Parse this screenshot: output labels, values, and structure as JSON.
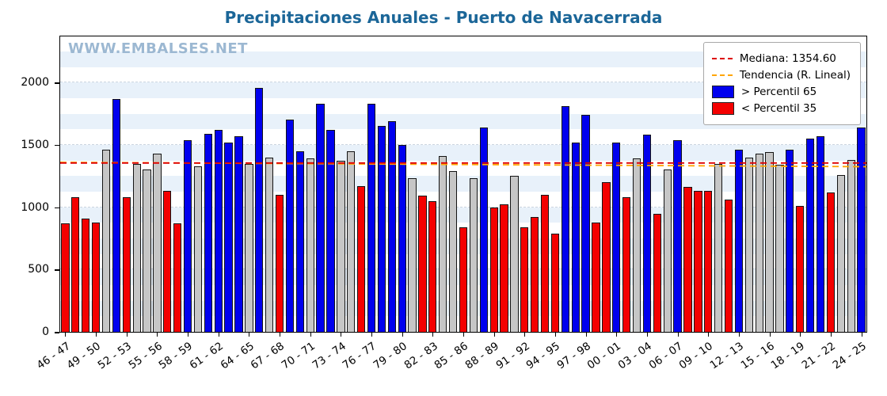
{
  "title": "Precipitaciones Anuales - Puerto de Navacerrada",
  "watermark": "WWW.EMBALSES.NET",
  "legend": {
    "median_label": "Mediana: 1354.60",
    "trend_label": "Tendencia (R. Lineal)",
    "above_label": "> Percentil 65",
    "below_label": "< Percentil 35"
  },
  "colors": {
    "above": "#0000ee",
    "below": "#f40000",
    "mid": "#c6c6c6",
    "median_line": "#dd0000",
    "trend_line": "#ffa500",
    "stripe": "#e8f1fa",
    "title": "#1b6698",
    "watermark": "#9cb8d2"
  },
  "chart_data": {
    "type": "bar",
    "title": "Precipitaciones Anuales - Puerto de Navacerrada",
    "xlabel": "",
    "ylabel": "",
    "ylim": [
      0,
      2370
    ],
    "yticks": [
      0,
      500,
      1000,
      1500,
      2000
    ],
    "tick_every": 3,
    "band_step": 125,
    "median": 1354.6,
    "trend": {
      "start": 1360,
      "end": 1325
    },
    "legend_position": "upper right",
    "grid": true,
    "categories": [
      "46 - 47",
      "47 - 48",
      "48 - 49",
      "49 - 50",
      "50 - 51",
      "51 - 52",
      "52 - 53",
      "53 - 54",
      "54 - 55",
      "55 - 56",
      "56 - 57",
      "57 - 58",
      "58 - 59",
      "59 - 60",
      "60 - 61",
      "61 - 62",
      "62 - 63",
      "63 - 64",
      "64 - 65",
      "65 - 66",
      "66 - 67",
      "67 - 68",
      "68 - 69",
      "69 - 70",
      "70 - 71",
      "71 - 72",
      "72 - 73",
      "73 - 74",
      "74 - 75",
      "75 - 76",
      "76 - 77",
      "77 - 78",
      "78 - 79",
      "79 - 80",
      "80 - 81",
      "81 - 82",
      "82 - 83",
      "83 - 84",
      "84 - 85",
      "85 - 86",
      "86 - 87",
      "87 - 88",
      "88 - 89",
      "89 - 90",
      "90 - 91",
      "91 - 92",
      "92 - 93",
      "93 - 94",
      "94 - 95",
      "95 - 96",
      "96 - 97",
      "97 - 98",
      "98 - 99",
      "99 - 00",
      "00 - 01",
      "01 - 02",
      "02 - 03",
      "03 - 04",
      "04 - 05",
      "05 - 06",
      "06 - 07",
      "07 - 08",
      "08 - 09",
      "09 - 10",
      "10 - 11",
      "11 - 12",
      "12 - 13",
      "13 - 14",
      "14 - 15",
      "15 - 16",
      "16 - 17",
      "17 - 18",
      "18 - 19",
      "19 - 20",
      "20 - 21",
      "21 - 22",
      "22 - 23",
      "23 - 24",
      "24 - 25"
    ],
    "values": [
      870,
      1080,
      910,
      880,
      1460,
      1870,
      1080,
      1350,
      1300,
      1430,
      1130,
      870,
      1540,
      1330,
      1590,
      1620,
      1520,
      1570,
      1350,
      1960,
      1400,
      1100,
      1700,
      1450,
      1390,
      1830,
      1620,
      1375,
      1450,
      1170,
      1830,
      1650,
      1690,
      1500,
      1230,
      1090,
      1050,
      1410,
      1290,
      840,
      1230,
      1640,
      1000,
      1020,
      1250,
      840,
      920,
      1100,
      790,
      1810,
      1520,
      1740,
      880,
      1200,
      1520,
      1080,
      1390,
      1580,
      950,
      1300,
      1540,
      1165,
      1130,
      1130,
      1350,
      1060,
      1460,
      1400,
      1430,
      1440,
      1340,
      1460,
      1010,
      1550,
      1570,
      1120,
      1260,
      1380,
      1640
    ],
    "band": [
      "below",
      "below",
      "below",
      "below",
      "mid",
      "above",
      "below",
      "mid",
      "mid",
      "mid",
      "below",
      "below",
      "above",
      "mid",
      "above",
      "above",
      "above",
      "above",
      "mid",
      "above",
      "mid",
      "below",
      "above",
      "above",
      "mid",
      "above",
      "above",
      "mid",
      "mid",
      "below",
      "above",
      "above",
      "above",
      "above",
      "mid",
      "below",
      "below",
      "mid",
      "mid",
      "below",
      "mid",
      "above",
      "below",
      "below",
      "mid",
      "below",
      "below",
      "below",
      "below",
      "above",
      "above",
      "above",
      "below",
      "below",
      "above",
      "below",
      "mid",
      "above",
      "below",
      "mid",
      "above",
      "below",
      "below",
      "below",
      "mid",
      "below",
      "above",
      "mid",
      "mid",
      "mid",
      "mid",
      "above",
      "below",
      "above",
      "above",
      "below",
      "mid",
      "mid",
      "above"
    ]
  }
}
